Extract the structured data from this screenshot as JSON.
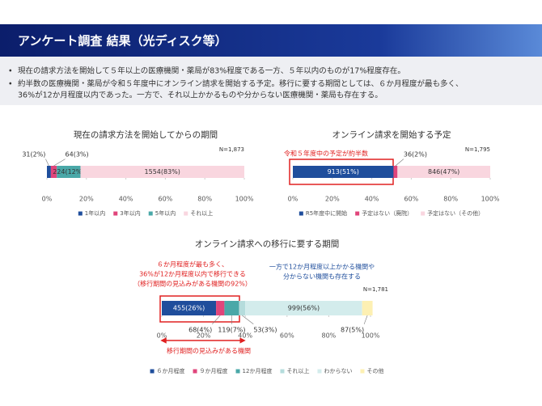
{
  "header": {
    "title": "アンケート調査 結果（光ディスク等）"
  },
  "bullets": [
    "現在の請求方法を開始して５年以上の医療機関・薬局が83%程度である一方、５年以内のものが17%程度存在。",
    "約半数の医療機関・薬局が令和５年度中にオンライン請求を開始する予定。移行に要する期間としては、６か月程度が最も多く、",
    "36%が12か月程度以内であった。一方で、それ以上かかるものや分からない医療機関・薬局も存在する。"
  ],
  "chart_data": [
    {
      "type": "bar",
      "title": "現在の請求方法を開始してからの期間",
      "annotations": [
        "N=1,873"
      ],
      "xlim": [
        0,
        100
      ],
      "xticks": [
        {
          "value": 0,
          "label": "0%"
        },
        {
          "value": 20,
          "label": "20%"
        },
        {
          "value": 40,
          "label": "40%"
        },
        {
          "value": 60,
          "label": "60%"
        },
        {
          "value": 80,
          "label": "80%"
        },
        {
          "value": 100,
          "label": "100%"
        }
      ],
      "series": [
        {
          "name": "1年以内",
          "color": "#1f4e9c",
          "values": [
            2
          ],
          "value_labels": [
            "31(2%)"
          ]
        },
        {
          "name": "3年以内",
          "color": "#e0457b",
          "values": [
            3
          ],
          "value_labels": [
            "64(3%)"
          ]
        },
        {
          "name": "5年以内",
          "color": "#4aa8a8",
          "values": [
            12
          ],
          "value_labels": [
            "224(12%)"
          ]
        },
        {
          "name": "それ以上",
          "color": "#f9d6df",
          "values": [
            83
          ],
          "value_labels": [
            "1554(83%)"
          ]
        }
      ]
    },
    {
      "type": "bar",
      "title": "オンライン請求を開始する予定",
      "annotations": [
        "N=1,795",
        "令和５年度中の予定が約半数"
      ],
      "xlim": [
        0,
        100
      ],
      "xticks": [
        {
          "value": 0,
          "label": "0%"
        },
        {
          "value": 20,
          "label": "20%"
        },
        {
          "value": 40,
          "label": "40%"
        },
        {
          "value": 60,
          "label": "60%"
        },
        {
          "value": 80,
          "label": "80%"
        },
        {
          "value": 100,
          "label": "100%"
        }
      ],
      "series": [
        {
          "name": "R5年度中に開始",
          "color": "#1f4e9c",
          "values": [
            51
          ],
          "value_labels": [
            "913(51%)"
          ]
        },
        {
          "name": "予定はない（廃院）",
          "color": "#e0457b",
          "values": [
            2
          ],
          "value_labels": [
            "36(2%)"
          ]
        },
        {
          "name": "予定はない（その他）",
          "color": "#f9d6df",
          "values": [
            47
          ],
          "value_labels": [
            "846(47%)"
          ]
        }
      ]
    },
    {
      "type": "bar",
      "title": "オンライン請求への移行に要する期間",
      "annotations": [
        "N=1,781",
        "６か月程度が最も多く、",
        "36%が12か月程度以内で移行できる",
        "（移行期間の見込みがある機関の92%）",
        "一方で12か月程度以上かかる機関や",
        "分からない機関も存在する",
        "移行期間の見込みがある機関"
      ],
      "xlim": [
        0,
        100
      ],
      "xticks": [
        {
          "value": 0,
          "label": "0%"
        },
        {
          "value": 20,
          "label": "20%"
        },
        {
          "value": 40,
          "label": "40%"
        },
        {
          "value": 60,
          "label": "60%"
        },
        {
          "value": 80,
          "label": "80%"
        },
        {
          "value": 100,
          "label": "100%"
        }
      ],
      "series": [
        {
          "name": "６か月程度",
          "color": "#1f4e9c",
          "values": [
            26
          ],
          "value_labels": [
            "455(26%)"
          ]
        },
        {
          "name": "９か月程度",
          "color": "#e0457b",
          "values": [
            4
          ],
          "value_labels": [
            "68(4%)"
          ]
        },
        {
          "name": "12か月程度",
          "color": "#4aa8a8",
          "values": [
            7
          ],
          "value_labels": [
            "119(7%)"
          ]
        },
        {
          "name": "それ以上",
          "color": "#b5dcdc",
          "values": [
            3
          ],
          "value_labels": [
            "53(3%)"
          ]
        },
        {
          "name": "わからない",
          "color": "#d3ecec",
          "values": [
            56
          ],
          "value_labels": [
            "999(56%)"
          ]
        },
        {
          "name": "その他",
          "color": "#fdf0b3",
          "values": [
            5
          ],
          "value_labels": [
            "87(5%)"
          ]
        }
      ]
    }
  ]
}
